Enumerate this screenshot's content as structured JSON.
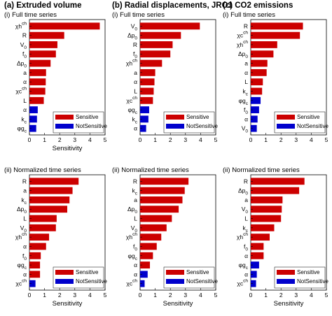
{
  "column_titles": [
    "(a) Extruded volume",
    "(b) Radial displacements, JRO1",
    "(c) CO2 emissions"
  ],
  "colors": {
    "sensitive": "#cc0000",
    "not_sensitive": "#0000cc"
  },
  "chart_data": [
    {
      "type": "bar",
      "orientation": "horizontal",
      "subtitle": "(i) Full time series",
      "xlabel": "Sensitivity",
      "xlim": [
        0,
        5
      ],
      "xticks": [
        0,
        1,
        2,
        3,
        4,
        5
      ],
      "legend": [
        "Sensitive",
        "NotSensitive"
      ],
      "legend_position": "bottom-right",
      "categories": [
        "χh^ch",
        "R",
        "V0",
        "f0",
        "Δp0",
        "a",
        "α",
        "χc^ch",
        "L",
        "α",
        "kc",
        "φgc"
      ],
      "values": [
        4.65,
        2.3,
        1.85,
        1.75,
        1.4,
        1.1,
        1.08,
        1.05,
        0.95,
        0.55,
        0.5,
        0.45
      ],
      "sensitive": [
        true,
        true,
        true,
        true,
        true,
        true,
        true,
        true,
        true,
        false,
        false,
        false
      ]
    },
    {
      "type": "bar",
      "orientation": "horizontal",
      "subtitle": "(i) Full time series",
      "xlabel": "",
      "xlim": [
        0,
        5
      ],
      "xticks": [
        0,
        1,
        2,
        3,
        4,
        5
      ],
      "legend": [
        "Sensitive",
        "NotSensitive"
      ],
      "legend_position": "bottom-right",
      "categories": [
        "V0",
        "Δp0",
        "R",
        "f0",
        "χh^ch",
        "a",
        "α",
        "L",
        "χc^ch",
        "φgc",
        "kc",
        "α"
      ],
      "values": [
        3.95,
        2.7,
        2.15,
        2.0,
        1.45,
        1.0,
        0.95,
        0.9,
        0.85,
        0.6,
        0.55,
        0.4
      ],
      "sensitive": [
        true,
        true,
        true,
        true,
        true,
        true,
        true,
        true,
        true,
        false,
        false,
        false
      ]
    },
    {
      "type": "bar",
      "orientation": "horizontal",
      "subtitle": "(i) Full time series",
      "xlabel": "",
      "xlim": [
        0,
        5
      ],
      "xticks": [
        0,
        1,
        2,
        3,
        4,
        5
      ],
      "legend": [
        "Sensitive",
        "NotSensitive"
      ],
      "legend_position": "bottom-right",
      "categories": [
        "R",
        "χc^ch",
        "χh^ch",
        "Δp0",
        "a",
        "α",
        "L",
        "kc",
        "φgc",
        "f0",
        "α",
        "V0"
      ],
      "values": [
        3.45,
        3.25,
        1.75,
        1.5,
        1.1,
        1.05,
        0.8,
        0.75,
        0.65,
        0.55,
        0.45,
        0.4
      ],
      "sensitive": [
        true,
        true,
        true,
        true,
        true,
        true,
        true,
        true,
        false,
        false,
        false,
        false
      ]
    },
    {
      "type": "bar",
      "orientation": "horizontal",
      "subtitle": "(ii) Normalized time series",
      "xlabel": "Sensitivity",
      "xlim": [
        0,
        5
      ],
      "xticks": [
        0,
        1,
        2,
        3,
        4,
        5
      ],
      "legend": [
        "Sensitive",
        "NotSensitive"
      ],
      "legend_position": "bottom-right",
      "categories": [
        "R",
        "a",
        "kc",
        "Δp0",
        "L",
        "V0",
        "χh^ch",
        "α",
        "f0",
        "φgc",
        "α",
        "χc^ch"
      ],
      "values": [
        3.25,
        2.85,
        2.65,
        2.5,
        1.8,
        1.75,
        1.3,
        1.1,
        0.75,
        0.7,
        0.7,
        0.4
      ],
      "sensitive": [
        true,
        true,
        true,
        true,
        true,
        true,
        true,
        true,
        true,
        true,
        true,
        false
      ]
    },
    {
      "type": "bar",
      "orientation": "horizontal",
      "subtitle": "(ii) Normalized time series",
      "xlabel": "Sensitivity",
      "xlim": [
        0,
        5
      ],
      "xticks": [
        0,
        1,
        2,
        3,
        4,
        5
      ],
      "legend": [
        "Sensitive",
        "NotSensitive"
      ],
      "legend_position": "bottom-right",
      "categories": [
        "R",
        "kc",
        "a",
        "Δp0",
        "L",
        "V0",
        "χh^ch",
        "f0",
        "φgc",
        "α",
        "α",
        "χc^ch"
      ],
      "values": [
        3.2,
        2.95,
        2.8,
        2.55,
        2.1,
        1.75,
        1.4,
        1.1,
        0.85,
        0.65,
        0.5,
        0.3
      ],
      "sensitive": [
        true,
        true,
        true,
        true,
        true,
        true,
        true,
        true,
        true,
        true,
        false,
        false
      ]
    },
    {
      "type": "bar",
      "orientation": "horizontal",
      "subtitle": "(ii) Normalized time series",
      "xlabel": "Sensitivity",
      "xlim": [
        0,
        5
      ],
      "xticks": [
        0,
        1,
        2,
        3,
        4,
        5
      ],
      "legend": [
        "Sensitive",
        "NotSensitive"
      ],
      "legend_position": "bottom-right",
      "categories": [
        "R",
        "Δp0",
        "a",
        "V0",
        "L",
        "kc",
        "χh^ch",
        "f0",
        "α",
        "φgc",
        "α",
        "χc^ch"
      ],
      "values": [
        3.55,
        3.2,
        2.1,
        2.05,
        2.0,
        1.55,
        1.25,
        0.85,
        0.85,
        0.55,
        0.4,
        0.35
      ],
      "sensitive": [
        true,
        true,
        true,
        true,
        true,
        true,
        true,
        true,
        true,
        false,
        false,
        false
      ]
    }
  ]
}
